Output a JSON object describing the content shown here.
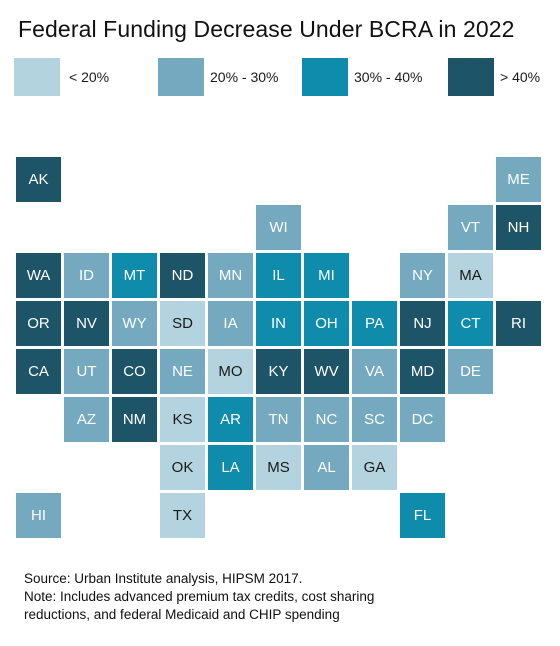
{
  "title": "Federal Funding Decrease Under BCRA in 2022",
  "colors": {
    "lt20": "#b3d3de",
    "20to30": "#75a9bf",
    "30to40": "#0f8bab",
    "gt40": "#1e5468"
  },
  "legend": [
    {
      "key": "lt20",
      "label": "< 20%"
    },
    {
      "key": "20to30",
      "label": "20% - 30%"
    },
    {
      "key": "30to40",
      "label": "30% - 40%"
    },
    {
      "key": "gt40",
      "label": "> 40%"
    }
  ],
  "states": [
    {
      "abbr": "AK",
      "bin": "gt40",
      "row": 0,
      "col": 0
    },
    {
      "abbr": "ME",
      "bin": "20to30",
      "row": 0,
      "col": 10
    },
    {
      "abbr": "WI",
      "bin": "20to30",
      "row": 1,
      "col": 5
    },
    {
      "abbr": "VT",
      "bin": "20to30",
      "row": 1,
      "col": 9
    },
    {
      "abbr": "NH",
      "bin": "gt40",
      "row": 1,
      "col": 10
    },
    {
      "abbr": "WA",
      "bin": "gt40",
      "row": 2,
      "col": 0
    },
    {
      "abbr": "ID",
      "bin": "20to30",
      "row": 2,
      "col": 1
    },
    {
      "abbr": "MT",
      "bin": "30to40",
      "row": 2,
      "col": 2
    },
    {
      "abbr": "ND",
      "bin": "gt40",
      "row": 2,
      "col": 3
    },
    {
      "abbr": "MN",
      "bin": "20to30",
      "row": 2,
      "col": 4
    },
    {
      "abbr": "IL",
      "bin": "30to40",
      "row": 2,
      "col": 5
    },
    {
      "abbr": "MI",
      "bin": "30to40",
      "row": 2,
      "col": 6
    },
    {
      "abbr": "NY",
      "bin": "20to30",
      "row": 2,
      "col": 8
    },
    {
      "abbr": "MA",
      "bin": "lt20",
      "row": 2,
      "col": 9
    },
    {
      "abbr": "OR",
      "bin": "gt40",
      "row": 3,
      "col": 0
    },
    {
      "abbr": "NV",
      "bin": "gt40",
      "row": 3,
      "col": 1
    },
    {
      "abbr": "WY",
      "bin": "20to30",
      "row": 3,
      "col": 2
    },
    {
      "abbr": "SD",
      "bin": "lt20",
      "row": 3,
      "col": 3
    },
    {
      "abbr": "IA",
      "bin": "20to30",
      "row": 3,
      "col": 4
    },
    {
      "abbr": "IN",
      "bin": "30to40",
      "row": 3,
      "col": 5
    },
    {
      "abbr": "OH",
      "bin": "30to40",
      "row": 3,
      "col": 6
    },
    {
      "abbr": "PA",
      "bin": "30to40",
      "row": 3,
      "col": 7
    },
    {
      "abbr": "NJ",
      "bin": "gt40",
      "row": 3,
      "col": 8
    },
    {
      "abbr": "CT",
      "bin": "30to40",
      "row": 3,
      "col": 9
    },
    {
      "abbr": "RI",
      "bin": "gt40",
      "row": 3,
      "col": 10
    },
    {
      "abbr": "CA",
      "bin": "gt40",
      "row": 4,
      "col": 0
    },
    {
      "abbr": "UT",
      "bin": "20to30",
      "row": 4,
      "col": 1
    },
    {
      "abbr": "CO",
      "bin": "gt40",
      "row": 4,
      "col": 2
    },
    {
      "abbr": "NE",
      "bin": "20to30",
      "row": 4,
      "col": 3
    },
    {
      "abbr": "MO",
      "bin": "lt20",
      "row": 4,
      "col": 4
    },
    {
      "abbr": "KY",
      "bin": "gt40",
      "row": 4,
      "col": 5
    },
    {
      "abbr": "WV",
      "bin": "gt40",
      "row": 4,
      "col": 6
    },
    {
      "abbr": "VA",
      "bin": "20to30",
      "row": 4,
      "col": 7
    },
    {
      "abbr": "MD",
      "bin": "gt40",
      "row": 4,
      "col": 8
    },
    {
      "abbr": "DE",
      "bin": "20to30",
      "row": 4,
      "col": 9
    },
    {
      "abbr": "AZ",
      "bin": "20to30",
      "row": 5,
      "col": 1
    },
    {
      "abbr": "NM",
      "bin": "gt40",
      "row": 5,
      "col": 2
    },
    {
      "abbr": "KS",
      "bin": "lt20",
      "row": 5,
      "col": 3
    },
    {
      "abbr": "AR",
      "bin": "30to40",
      "row": 5,
      "col": 4
    },
    {
      "abbr": "TN",
      "bin": "20to30",
      "row": 5,
      "col": 5
    },
    {
      "abbr": "NC",
      "bin": "20to30",
      "row": 5,
      "col": 6
    },
    {
      "abbr": "SC",
      "bin": "20to30",
      "row": 5,
      "col": 7
    },
    {
      "abbr": "DC",
      "bin": "20to30",
      "row": 5,
      "col": 8
    },
    {
      "abbr": "OK",
      "bin": "lt20",
      "row": 6,
      "col": 3
    },
    {
      "abbr": "LA",
      "bin": "30to40",
      "row": 6,
      "col": 4
    },
    {
      "abbr": "MS",
      "bin": "lt20",
      "row": 6,
      "col": 5
    },
    {
      "abbr": "AL",
      "bin": "20to30",
      "row": 6,
      "col": 6
    },
    {
      "abbr": "GA",
      "bin": "lt20",
      "row": 6,
      "col": 7
    },
    {
      "abbr": "HI",
      "bin": "20to30",
      "row": 7,
      "col": 0
    },
    {
      "abbr": "TX",
      "bin": "lt20",
      "row": 7,
      "col": 3
    },
    {
      "abbr": "FL",
      "bin": "30to40",
      "row": 7,
      "col": 8
    }
  ],
  "notes": {
    "source": "Source: Urban Institute analysis, HIPSM 2017.",
    "note_line1": "Note: Includes advanced premium tax credits, cost sharing",
    "note_line2": "reductions, and federal Medicaid and CHIP spending"
  }
}
